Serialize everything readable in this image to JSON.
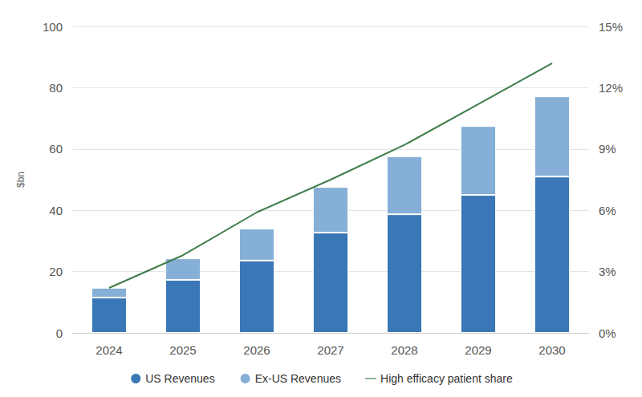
{
  "chart_data": {
    "type": "bar",
    "ylabel": "$bn",
    "categories": [
      "2024",
      "2025",
      "2026",
      "2027",
      "2028",
      "2029",
      "2030"
    ],
    "series": [
      {
        "name": "US Revenues",
        "type": "bar",
        "color": "#3a77b6",
        "values": [
          11.5,
          17.3,
          23.6,
          32.7,
          38.7,
          45.0,
          51.0
        ]
      },
      {
        "name": "Ex-US Revenues",
        "type": "bar",
        "color": "#85afd6",
        "values": [
          3.2,
          7.0,
          10.4,
          14.9,
          18.9,
          22.5,
          26.2
        ]
      },
      {
        "name": "High efficacy patient share",
        "type": "line",
        "axis": "y2",
        "color": "#3f7d4c",
        "marker": "none",
        "values": [
          2.2,
          3.8,
          5.9,
          7.5,
          9.2,
          11.2,
          13.2
        ]
      }
    ],
    "ylim": [
      0,
      100
    ],
    "yticks": [
      0,
      20,
      40,
      60,
      80,
      100
    ],
    "y2lim": [
      0,
      15
    ],
    "y2ticks": [
      {
        "value": 0,
        "label": "0%"
      },
      {
        "value": 3,
        "label": "3%"
      },
      {
        "value": 6,
        "label": "6%"
      },
      {
        "value": 9,
        "label": "9%"
      },
      {
        "value": 12,
        "label": "12%"
      },
      {
        "value": 15,
        "label": "15%"
      }
    ],
    "stacked": true,
    "grid": true,
    "legend": "bottom"
  }
}
